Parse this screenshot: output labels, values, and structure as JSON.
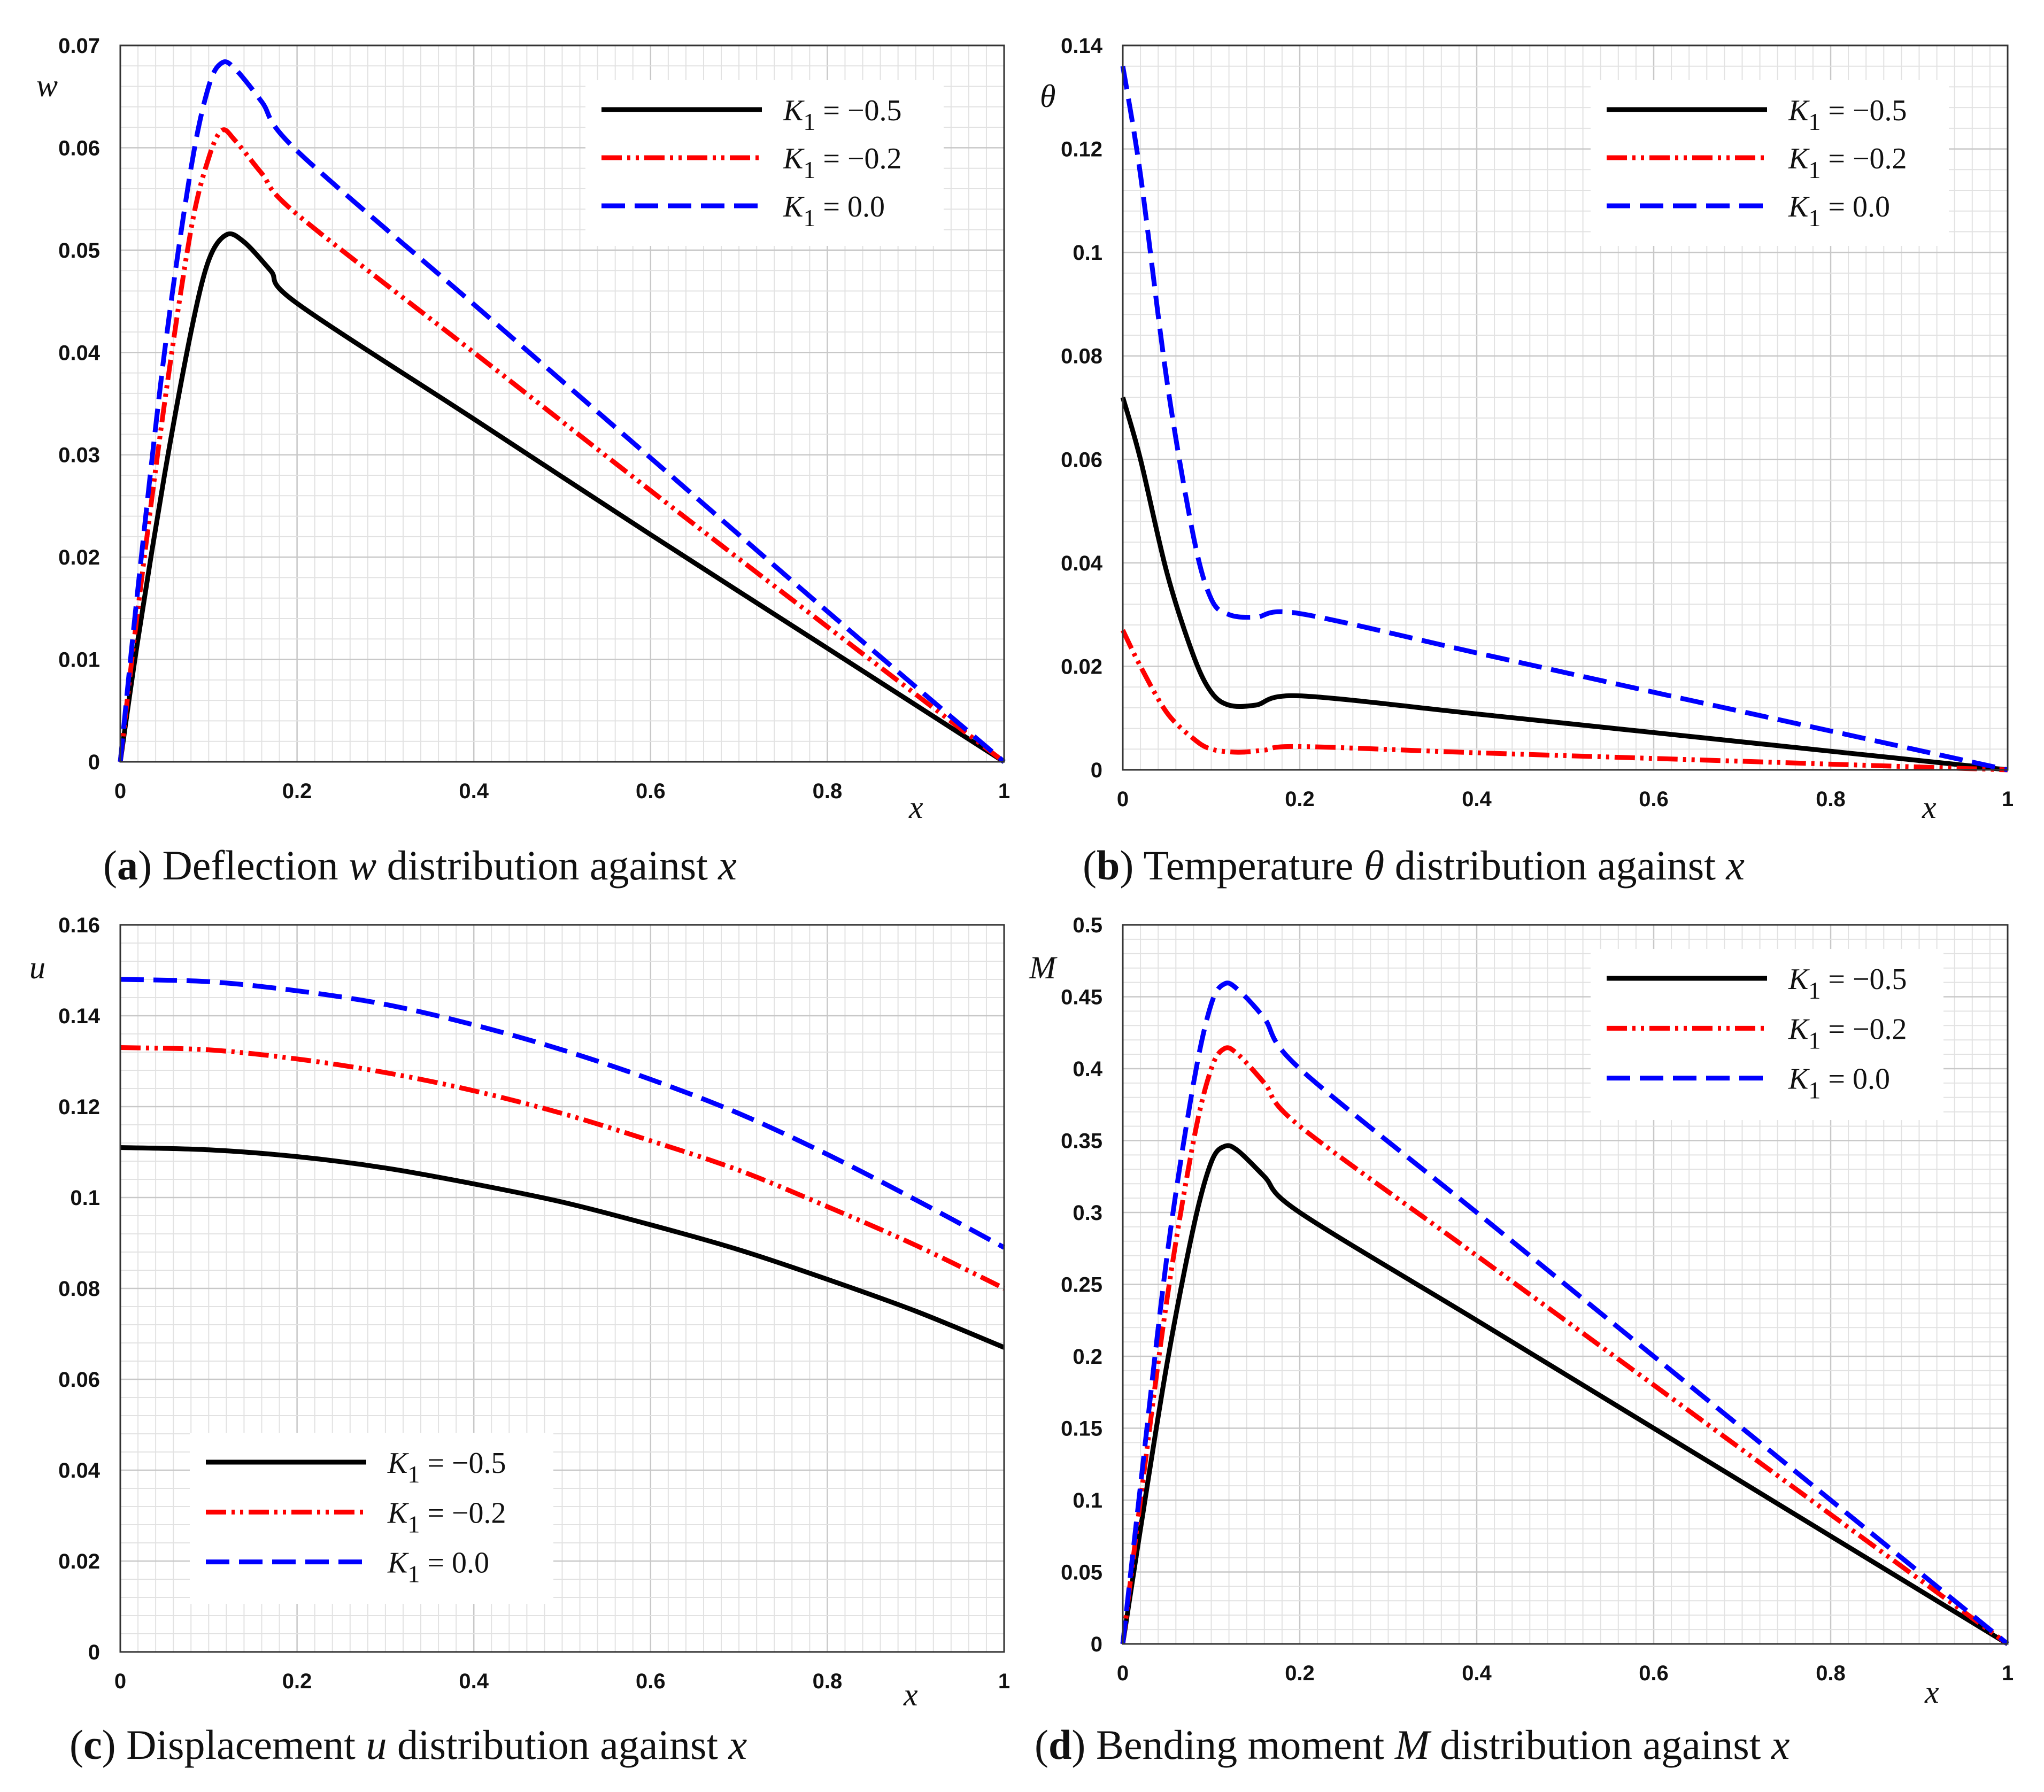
{
  "colors": {
    "black": "#000000",
    "red": "#ff0000",
    "blue": "#0000ff",
    "grid": "#c8c8c8",
    "gridMinor": "#e2e2e2"
  },
  "series_labels": [
    {
      "name": "K1 = -0.5",
      "sym": "K",
      "sub": "1",
      "eq": "= −0.5",
      "color": "#000000",
      "dash": "solid"
    },
    {
      "name": "K1 = -0.2",
      "sym": "K",
      "sub": "1",
      "eq": "= −0.2",
      "color": "#ff0000",
      "dash": "dash-dot-dot"
    },
    {
      "name": "K1 = 0.0",
      "sym": "K",
      "sub": "1",
      "eq": "= 0.0",
      "color": "#0000ff",
      "dash": "dash"
    }
  ],
  "chart_data": [
    {
      "id": "a",
      "type": "line",
      "title": "Deflection w distribution against x",
      "caption": {
        "tag": "a",
        "pre": "Deflection ",
        "var": "w",
        "post": " distribution against ",
        "xvar": "x"
      },
      "xlabel": "x",
      "ylabel": "w",
      "xlim": [
        0,
        1
      ],
      "ylim": [
        0,
        0.07
      ],
      "xticks": [
        "0",
        "0.2",
        "0.4",
        "0.6",
        "0.8",
        "1"
      ],
      "yticks": [
        "0",
        "0.01",
        "0.02",
        "0.03",
        "0.04",
        "0.05",
        "0.06",
        "0.07"
      ],
      "legend": "top-right",
      "series": [
        {
          "name": "K1 = -0.5",
          "x": [
            0,
            0.02,
            0.05,
            0.08,
            0.1,
            0.12,
            0.14,
            0.17,
            0.2,
            0.4,
            0.6,
            0.8,
            1.0
          ],
          "y": [
            0,
            0.012,
            0.028,
            0.042,
            0.049,
            0.0515,
            0.0508,
            0.048,
            0.0448,
            0.0335,
            0.0222,
            0.0111,
            0
          ]
        },
        {
          "name": "K1 = -0.2",
          "x": [
            0,
            0.02,
            0.05,
            0.08,
            0.1,
            0.115,
            0.13,
            0.16,
            0.2,
            0.4,
            0.6,
            0.8,
            1.0
          ],
          "y": [
            0,
            0.015,
            0.035,
            0.052,
            0.059,
            0.0617,
            0.0607,
            0.0575,
            0.0535,
            0.04,
            0.0265,
            0.0132,
            0
          ]
        },
        {
          "name": "K1 = 0.0",
          "x": [
            0,
            0.02,
            0.05,
            0.08,
            0.1,
            0.115,
            0.13,
            0.16,
            0.2,
            0.4,
            0.6,
            0.8,
            1.0
          ],
          "y": [
            0,
            0.017,
            0.04,
            0.058,
            0.066,
            0.0683,
            0.0677,
            0.0645,
            0.0597,
            0.0447,
            0.0297,
            0.0147,
            0
          ]
        }
      ]
    },
    {
      "id": "b",
      "type": "line",
      "title": "Temperature θ distribution against x",
      "caption": {
        "tag": "b",
        "pre": "Temperature ",
        "var": "θ",
        "post": " distribution against ",
        "xvar": "x"
      },
      "xlabel": "x",
      "ylabel": "θ",
      "xlim": [
        0,
        1
      ],
      "ylim": [
        0,
        0.14
      ],
      "xticks": [
        "0",
        "0.2",
        "0.4",
        "0.6",
        "0.8",
        "1"
      ],
      "yticks": [
        "0",
        "0.02",
        "0.04",
        "0.06",
        "0.08",
        "0.1",
        "0.12",
        "0.14"
      ],
      "legend": "top-right",
      "series": [
        {
          "name": "K1 = -0.5",
          "x": [
            0,
            0.02,
            0.05,
            0.08,
            0.1,
            0.12,
            0.15,
            0.2,
            0.4,
            0.6,
            0.8,
            1.0
          ],
          "y": [
            0.072,
            0.06,
            0.038,
            0.022,
            0.015,
            0.0125,
            0.0125,
            0.0143,
            0.0108,
            0.0072,
            0.0036,
            0
          ]
        },
        {
          "name": "K1 = -0.2",
          "x": [
            0,
            0.02,
            0.05,
            0.08,
            0.1,
            0.13,
            0.16,
            0.2,
            0.4,
            0.6,
            0.8,
            1.0
          ],
          "y": [
            0.027,
            0.02,
            0.011,
            0.006,
            0.004,
            0.0034,
            0.0038,
            0.0045,
            0.0033,
            0.0022,
            0.0011,
            0
          ]
        },
        {
          "name": "K1 = 0.0",
          "x": [
            0,
            0.02,
            0.05,
            0.08,
            0.1,
            0.12,
            0.15,
            0.2,
            0.4,
            0.6,
            0.8,
            1.0
          ],
          "y": [
            0.136,
            0.115,
            0.075,
            0.045,
            0.033,
            0.03,
            0.0295,
            0.0302,
            0.0226,
            0.015,
            0.0075,
            0
          ]
        }
      ]
    },
    {
      "id": "c",
      "type": "line",
      "title": "Displacement u distribution against x",
      "caption": {
        "tag": "c",
        "pre": "Displacement ",
        "var": "u",
        "post": " distribution against ",
        "xvar": "x"
      },
      "xlabel": "x",
      "ylabel": "u",
      "xlim": [
        0,
        1
      ],
      "ylim": [
        0,
        0.16
      ],
      "xticks": [
        "0",
        "0.2",
        "0.4",
        "0.6",
        "0.8",
        "1"
      ],
      "yticks": [
        "0",
        "0.02",
        "0.04",
        "0.06",
        "0.08",
        "0.1",
        "0.12",
        "0.14",
        "0.16"
      ],
      "legend": "bottom-left",
      "series": [
        {
          "name": "K1 = -0.5",
          "x": [
            0,
            0.1,
            0.2,
            0.3,
            0.4,
            0.5,
            0.6,
            0.7,
            0.8,
            0.9,
            1.0
          ],
          "y": [
            0.111,
            0.1105,
            0.109,
            0.1065,
            0.103,
            0.099,
            0.094,
            0.0885,
            0.082,
            0.075,
            0.067
          ]
        },
        {
          "name": "K1 = -0.2",
          "x": [
            0,
            0.1,
            0.2,
            0.3,
            0.4,
            0.5,
            0.6,
            0.7,
            0.8,
            0.9,
            1.0
          ],
          "y": [
            0.133,
            0.1325,
            0.1305,
            0.1275,
            0.1235,
            0.1185,
            0.1125,
            0.106,
            0.098,
            0.0895,
            0.08
          ]
        },
        {
          "name": "K1 = 0.0",
          "x": [
            0,
            0.1,
            0.2,
            0.3,
            0.4,
            0.5,
            0.6,
            0.7,
            0.8,
            0.9,
            1.0
          ],
          "y": [
            0.148,
            0.1475,
            0.1455,
            0.1425,
            0.138,
            0.1325,
            0.126,
            0.1185,
            0.1095,
            0.0995,
            0.089
          ]
        }
      ]
    },
    {
      "id": "d",
      "type": "line",
      "title": "Bending moment M distribution against x",
      "caption": {
        "tag": "d",
        "pre": "Bending moment ",
        "var": "M",
        "post": " distribution against ",
        "xvar": "x"
      },
      "xlabel": "x",
      "ylabel": "M",
      "xlim": [
        0,
        1
      ],
      "ylim": [
        0,
        0.5
      ],
      "xticks": [
        "0",
        "0.2",
        "0.4",
        "0.6",
        "0.8",
        "1"
      ],
      "yticks": [
        "0",
        "0.05",
        "0.1",
        "0.15",
        "0.2",
        "0.25",
        "0.3",
        "0.35",
        "0.4",
        "0.45",
        "0.5"
      ],
      "legend": "top-right",
      "series": [
        {
          "name": "K1 = -0.5",
          "x": [
            0,
            0.02,
            0.05,
            0.08,
            0.1,
            0.115,
            0.13,
            0.16,
            0.2,
            0.4,
            0.6,
            0.8,
            1.0
          ],
          "y": [
            0,
            0.08,
            0.195,
            0.29,
            0.335,
            0.346,
            0.343,
            0.325,
            0.3,
            0.225,
            0.15,
            0.075,
            0
          ]
        },
        {
          "name": "K1 = -0.2",
          "x": [
            0,
            0.02,
            0.05,
            0.08,
            0.1,
            0.115,
            0.13,
            0.16,
            0.2,
            0.4,
            0.6,
            0.8,
            1.0
          ],
          "y": [
            0,
            0.1,
            0.24,
            0.35,
            0.4,
            0.414,
            0.41,
            0.39,
            0.36,
            0.27,
            0.18,
            0.09,
            0
          ]
        },
        {
          "name": "K1 = 0.0",
          "x": [
            0,
            0.02,
            0.05,
            0.08,
            0.1,
            0.115,
            0.13,
            0.16,
            0.2,
            0.4,
            0.6,
            0.8,
            1.0
          ],
          "y": [
            0,
            0.11,
            0.27,
            0.39,
            0.445,
            0.459,
            0.455,
            0.435,
            0.4,
            0.3,
            0.2,
            0.1,
            0
          ]
        }
      ]
    }
  ]
}
